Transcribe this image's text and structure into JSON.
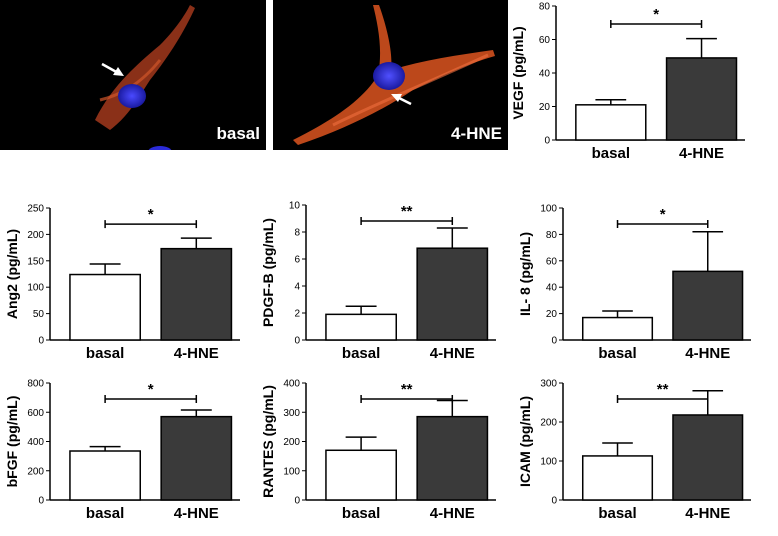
{
  "figure": {
    "micrographs": [
      {
        "label": "basal"
      },
      {
        "label": "4-HNE"
      }
    ]
  },
  "colors": {
    "basal_bar": "#ffffff",
    "hne_bar": "#3a3a3a",
    "axis": "#000000",
    "stain_nucleus": "#2a2ad8",
    "stain_cytoskeleton": "#e04a1c"
  },
  "chart_data": [
    {
      "type": "bar",
      "ylabel": "VEGF (pg/mL)",
      "categories": [
        "basal",
        "4-HNE"
      ],
      "values": [
        21,
        49
      ],
      "errors": [
        3,
        11.5
      ],
      "ylim": [
        0,
        80
      ],
      "yticks": [
        0,
        20,
        40,
        60,
        80
      ],
      "significance": "*"
    },
    {
      "type": "bar",
      "ylabel": "Ang2 (pg/mL)",
      "categories": [
        "basal",
        "4-HNE"
      ],
      "values": [
        124,
        173
      ],
      "errors": [
        20,
        20
      ],
      "ylim": [
        0,
        250
      ],
      "yticks": [
        0,
        50,
        100,
        150,
        200,
        250
      ],
      "significance": "*"
    },
    {
      "type": "bar",
      "ylabel": "PDGF-B (pg/mL)",
      "categories": [
        "basal",
        "4-HNE"
      ],
      "values": [
        1.9,
        6.8
      ],
      "errors": [
        0.6,
        1.5
      ],
      "ylim": [
        0,
        10
      ],
      "yticks": [
        0,
        2,
        4,
        6,
        8,
        10
      ],
      "significance": "**"
    },
    {
      "type": "bar",
      "ylabel": "IL- 8 (pg/mL)",
      "categories": [
        "basal",
        "4-HNE"
      ],
      "values": [
        17,
        52
      ],
      "errors": [
        5,
        30
      ],
      "ylim": [
        0,
        100
      ],
      "yticks": [
        0,
        20,
        40,
        60,
        80,
        100
      ],
      "significance": "*"
    },
    {
      "type": "bar",
      "ylabel": "bFGF (pg/mL)",
      "categories": [
        "basal",
        "4-HNE"
      ],
      "values": [
        335,
        570
      ],
      "errors": [
        30,
        45
      ],
      "ylim": [
        0,
        800
      ],
      "yticks": [
        0,
        200,
        400,
        600,
        800
      ],
      "significance": "*"
    },
    {
      "type": "bar",
      "ylabel": "RANTES (pg/mL)",
      "categories": [
        "basal",
        "4-HNE"
      ],
      "values": [
        170,
        285
      ],
      "errors": [
        45,
        55
      ],
      "ylim": [
        0,
        400
      ],
      "yticks": [
        0,
        100,
        200,
        300,
        400
      ],
      "significance": "**"
    },
    {
      "type": "bar",
      "ylabel": "ICAM (pg/mL)",
      "categories": [
        "basal",
        "4-HNE"
      ],
      "values": [
        113,
        218
      ],
      "errors": [
        33,
        62
      ],
      "ylim": [
        0,
        300
      ],
      "yticks": [
        0,
        100,
        200,
        300
      ],
      "significance": "**"
    }
  ]
}
